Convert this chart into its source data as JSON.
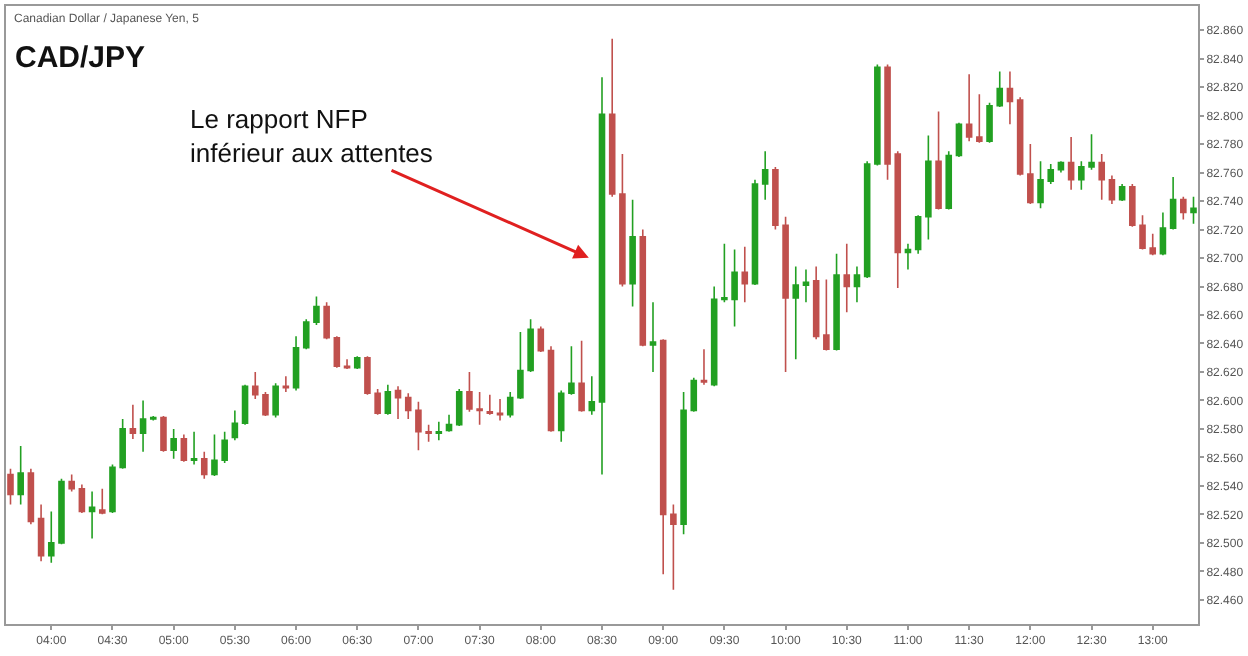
{
  "chart_data": {
    "type": "candlestick",
    "title": "CAD/JPY",
    "subtitle": "Canadian Dollar / Japanese Yen, 5",
    "annotations": [
      "Le rapport NFP\ninférieur aux attentes"
    ],
    "colors": [
      "#c0504d",
      "#22a022",
      "#c0504d",
      "#c0504d",
      "#22a022",
      "#22a022",
      "#c0504d",
      "#c0504d",
      "#22a022",
      "#c0504d",
      "#22a022",
      "#22a022",
      "#c0504d",
      "#22a022",
      "#22a022",
      "#c0504d",
      "#22a022",
      "#c0504d",
      "#22a022",
      "#c0504d",
      "#22a022",
      "#22a022",
      "#22a022",
      "#22a022",
      "#c0504d",
      "#c0504d",
      "#22a022",
      "#c0504d",
      "#22a022",
      "#22a022",
      "#22a022",
      "#c0504d",
      "#c0504d",
      "#c0504d",
      "#22a022",
      "#c0504d",
      "#c0504d",
      "#22a022",
      "#c0504d",
      "#c0504d",
      "#c0504d",
      "#c0504d",
      "#22a022",
      "#22a022",
      "#22a022",
      "#c0504d",
      "#c0504d",
      "#c0504d",
      "#c0504d",
      "#22a022",
      "#22a022",
      "#22a022",
      "#c0504d",
      "#c0504d",
      "#22a022",
      "#22a022",
      "#c0504d",
      "#22a022",
      "#22a022",
      "#c0504d",
      "#c0504d",
      "#22a022",
      "#c0504d",
      "#22a022",
      "#c0504d",
      "#c0504d",
      "#22a022",
      "#22a022",
      "#c0504d",
      "#22a022",
      "#22a022",
      "#22a022",
      "#c0504d",
      "#22a022",
      "#22a022",
      "#c0504d",
      "#c0504d",
      "#22a022",
      "#22a022",
      "#c0504d",
      "#c0504d",
      "#22a022",
      "#c0504d",
      "#22a022",
      "#22a022",
      "#22a022",
      "#c0504d",
      "#c0504d",
      "#22a022",
      "#22a022",
      "#22a022",
      "#c0504d",
      "#22a022",
      "#22a022",
      "#c0504d",
      "#c0504d",
      "#22a022",
      "#22a022",
      "#c0504d",
      "#c0504d",
      "#c0504d",
      "#22a022",
      "#22a022",
      "#22a022",
      "#c0504d",
      "#22a022",
      "#22a022",
      "#c0504d",
      "#c0504d",
      "#22a022",
      "#c0504d",
      "#c0504d",
      "#c0504d",
      "#22a022",
      "#22a022",
      "#c0504d",
      "#22a022"
    ],
    "x": [
      3.6667,
      3.75,
      3.8333,
      3.9167,
      4,
      4.0833,
      4.1667,
      4.25,
      4.3333,
      4.4167,
      4.5,
      4.5833,
      4.6667,
      4.75,
      4.8333,
      4.9167,
      5,
      5.0833,
      5.1667,
      5.25,
      5.3333,
      5.4167,
      5.5,
      5.5833,
      5.6667,
      5.75,
      5.8333,
      5.9167,
      6,
      6.0833,
      6.1667,
      6.25,
      6.3333,
      6.4167,
      6.5,
      6.5833,
      6.6667,
      6.75,
      6.8333,
      6.9167,
      7,
      7.0833,
      7.1667,
      7.25,
      7.3333,
      7.4167,
      7.5,
      7.5833,
      7.6667,
      7.75,
      7.8333,
      7.9167,
      8,
      8.0833,
      8.1667,
      8.25,
      8.3333,
      8.4167,
      8.5,
      8.5833,
      8.6667,
      8.75,
      8.8333,
      8.9167,
      9,
      9.0833,
      9.1667,
      9.25,
      9.3333,
      9.4167,
      9.5,
      9.5833,
      9.6667,
      9.75,
      9.8333,
      9.9167,
      10,
      10.0833,
      10.1667,
      10.25,
      10.3333,
      10.4167,
      10.5,
      10.5833,
      10.6667,
      10.75,
      10.8333,
      10.9167,
      11,
      11.0833,
      11.1667,
      11.25,
      11.3333,
      11.4167,
      11.5,
      11.5833,
      11.6667,
      11.75,
      11.8333,
      11.9167,
      12,
      12.0833,
      12.1667,
      12.25,
      12.3333,
      12.4167,
      12.5,
      12.5833,
      12.6667,
      12.75,
      12.8333,
      12.9167,
      13,
      13.0833,
      13.1667,
      13.25,
      13.3333
    ],
    "ohlc": [
      [
        82.548,
        82.552,
        82.527,
        82.534
      ],
      [
        82.534,
        82.568,
        82.527,
        82.549
      ],
      [
        82.549,
        82.552,
        82.513,
        82.515
      ],
      [
        82.517,
        82.527,
        82.487,
        82.491
      ],
      [
        82.491,
        82.522,
        82.486,
        82.5
      ],
      [
        82.5,
        82.545,
        82.499,
        82.543
      ],
      [
        82.543,
        82.548,
        82.536,
        82.538
      ],
      [
        82.538,
        82.541,
        82.521,
        82.522
      ],
      [
        82.522,
        82.536,
        82.503,
        82.525
      ],
      [
        82.523,
        82.538,
        82.52,
        82.521
      ],
      [
        82.522,
        82.555,
        82.521,
        82.553
      ],
      [
        82.553,
        82.587,
        82.552,
        82.58
      ],
      [
        82.58,
        82.597,
        82.573,
        82.577
      ],
      [
        82.577,
        82.6,
        82.564,
        82.587
      ],
      [
        82.587,
        82.589,
        82.586,
        82.588
      ],
      [
        82.588,
        82.589,
        82.564,
        82.565
      ],
      [
        82.565,
        82.58,
        82.559,
        82.573
      ],
      [
        82.573,
        82.576,
        82.557,
        82.558
      ],
      [
        82.558,
        82.578,
        82.555,
        82.559
      ],
      [
        82.559,
        82.564,
        82.545,
        82.548
      ],
      [
        82.548,
        82.576,
        82.547,
        82.558
      ],
      [
        82.558,
        82.578,
        82.556,
        82.572
      ],
      [
        82.574,
        82.593,
        82.572,
        82.584
      ],
      [
        82.584,
        82.611,
        82.583,
        82.61
      ],
      [
        82.61,
        82.62,
        82.601,
        82.604
      ],
      [
        82.604,
        82.606,
        82.589,
        82.59
      ],
      [
        82.59,
        82.612,
        82.588,
        82.61
      ],
      [
        82.61,
        82.617,
        82.606,
        82.609
      ],
      [
        82.609,
        82.645,
        82.607,
        82.637
      ],
      [
        82.637,
        82.657,
        82.636,
        82.655
      ],
      [
        82.655,
        82.673,
        82.653,
        82.666
      ],
      [
        82.666,
        82.669,
        82.643,
        82.644
      ],
      [
        82.644,
        82.645,
        82.623,
        82.624
      ],
      [
        82.624,
        82.629,
        82.622,
        82.623
      ],
      [
        82.623,
        82.631,
        82.622,
        82.63
      ],
      [
        82.63,
        82.631,
        82.604,
        82.605
      ],
      [
        82.605,
        82.608,
        82.59,
        82.591
      ],
      [
        82.591,
        82.611,
        82.59,
        82.606
      ],
      [
        82.607,
        82.61,
        82.587,
        82.602
      ],
      [
        82.602,
        82.605,
        82.587,
        82.593
      ],
      [
        82.593,
        82.599,
        82.565,
        82.578
      ],
      [
        82.578,
        82.583,
        82.571,
        82.577
      ],
      [
        82.577,
        82.585,
        82.572,
        82.578
      ],
      [
        82.579,
        82.59,
        82.578,
        82.583
      ],
      [
        82.583,
        82.608,
        82.582,
        82.606
      ],
      [
        82.606,
        82.62,
        82.592,
        82.594
      ],
      [
        82.594,
        82.606,
        82.583,
        82.593
      ],
      [
        82.592,
        82.604,
        82.59,
        82.591
      ],
      [
        82.591,
        82.601,
        82.586,
        82.59
      ],
      [
        82.59,
        82.606,
        82.588,
        82.602
      ],
      [
        82.602,
        82.648,
        82.601,
        82.621
      ],
      [
        82.621,
        82.657,
        82.62,
        82.65
      ],
      [
        82.65,
        82.652,
        82.634,
        82.635
      ],
      [
        82.635,
        82.638,
        82.578,
        82.579
      ],
      [
        82.579,
        82.607,
        82.571,
        82.605
      ],
      [
        82.605,
        82.638,
        82.604,
        82.612
      ],
      [
        82.612,
        82.642,
        82.592,
        82.593
      ],
      [
        82.593,
        82.617,
        82.59,
        82.599
      ],
      [
        82.599,
        82.827,
        82.548,
        82.801
      ],
      [
        82.801,
        82.854,
        82.743,
        82.745
      ],
      [
        82.745,
        82.773,
        82.68,
        82.682
      ],
      [
        82.682,
        82.741,
        82.666,
        82.715
      ],
      [
        82.715,
        82.72,
        82.638,
        82.639
      ],
      [
        82.639,
        82.669,
        82.62,
        82.641
      ],
      [
        82.642,
        82.643,
        82.478,
        82.52
      ],
      [
        82.52,
        82.527,
        82.467,
        82.513
      ],
      [
        82.513,
        82.606,
        82.506,
        82.593
      ],
      [
        82.593,
        82.616,
        82.592,
        82.614
      ],
      [
        82.614,
        82.636,
        82.611,
        82.613
      ],
      [
        82.611,
        82.68,
        82.61,
        82.671
      ],
      [
        82.671,
        82.71,
        82.669,
        82.672
      ],
      [
        82.671,
        82.706,
        82.652,
        82.69
      ],
      [
        82.69,
        82.708,
        82.669,
        82.682
      ],
      [
        82.682,
        82.755,
        82.681,
        82.752
      ],
      [
        82.752,
        82.775,
        82.741,
        82.762
      ],
      [
        82.762,
        82.764,
        82.72,
        82.723
      ],
      [
        82.723,
        82.729,
        82.62,
        82.672
      ],
      [
        82.672,
        82.694,
        82.629,
        82.681
      ],
      [
        82.681,
        82.692,
        82.669,
        82.683
      ],
      [
        82.684,
        82.694,
        82.643,
        82.645
      ],
      [
        82.646,
        82.685,
        82.635,
        82.636
      ],
      [
        82.636,
        82.703,
        82.635,
        82.688
      ],
      [
        82.688,
        82.71,
        82.662,
        82.68
      ],
      [
        82.68,
        82.694,
        82.669,
        82.688
      ],
      [
        82.687,
        82.768,
        82.686,
        82.766
      ],
      [
        82.766,
        82.836,
        82.765,
        82.834
      ],
      [
        82.834,
        82.836,
        82.755,
        82.766
      ],
      [
        82.773,
        82.775,
        82.679,
        82.704
      ],
      [
        82.704,
        82.71,
        82.692,
        82.706
      ],
      [
        82.706,
        82.73,
        82.703,
        82.729
      ],
      [
        82.729,
        82.786,
        82.713,
        82.768
      ],
      [
        82.768,
        82.803,
        82.734,
        82.735
      ],
      [
        82.735,
        82.775,
        82.734,
        82.772
      ],
      [
        82.772,
        82.795,
        82.771,
        82.794
      ],
      [
        82.794,
        82.829,
        82.782,
        82.785
      ],
      [
        82.785,
        82.815,
        82.781,
        82.782
      ],
      [
        82.782,
        82.809,
        82.781,
        82.807
      ],
      [
        82.807,
        82.831,
        82.806,
        82.819
      ],
      [
        82.819,
        82.831,
        82.794,
        82.81
      ],
      [
        82.811,
        82.813,
        82.758,
        82.759
      ],
      [
        82.759,
        82.78,
        82.738,
        82.739
      ],
      [
        82.739,
        82.768,
        82.735,
        82.755
      ],
      [
        82.754,
        82.766,
        82.752,
        82.762
      ],
      [
        82.762,
        82.768,
        82.76,
        82.767
      ],
      [
        82.767,
        82.785,
        82.748,
        82.755
      ],
      [
        82.755,
        82.768,
        82.748,
        82.764
      ],
      [
        82.764,
        82.787,
        82.762,
        82.767
      ],
      [
        82.767,
        82.773,
        82.741,
        82.755
      ],
      [
        82.755,
        82.758,
        82.738,
        82.741
      ],
      [
        82.741,
        82.752,
        82.74,
        82.75
      ],
      [
        82.75,
        82.752,
        82.722,
        82.723
      ],
      [
        82.723,
        82.73,
        82.706,
        82.707
      ],
      [
        82.707,
        82.717,
        82.702,
        82.703
      ],
      [
        82.703,
        82.732,
        82.702,
        82.721
      ],
      [
        82.721,
        82.757,
        82.72,
        82.741
      ],
      [
        82.741,
        82.743,
        82.727,
        82.732
      ],
      [
        82.732,
        82.743,
        82.724,
        82.735
      ]
    ],
    "xlim": [
      3.63,
      13.37
    ],
    "xticks": [
      {
        "value": 4,
        "label": "04:00"
      },
      {
        "value": 4.5,
        "label": "04:30"
      },
      {
        "value": 5,
        "label": "05:00"
      },
      {
        "value": 5.5,
        "label": "05:30"
      },
      {
        "value": 6,
        "label": "06:00"
      },
      {
        "value": 6.5,
        "label": "06:30"
      },
      {
        "value": 7,
        "label": "07:00"
      },
      {
        "value": 7.5,
        "label": "07:30"
      },
      {
        "value": 8,
        "label": "08:00"
      },
      {
        "value": 8.5,
        "label": "08:30"
      },
      {
        "value": 9,
        "label": "09:00"
      },
      {
        "value": 9.5,
        "label": "09:30"
      },
      {
        "value": 10,
        "label": "10:00"
      },
      {
        "value": 10.5,
        "label": "10:30"
      },
      {
        "value": 11,
        "label": "11:00"
      },
      {
        "value": 11.5,
        "label": "11:30"
      },
      {
        "value": 12,
        "label": "12:00"
      },
      {
        "value": 12.5,
        "label": "12:30"
      },
      {
        "value": 13,
        "label": "13:00"
      }
    ],
    "ylim": [
      82.443,
      82.877
    ],
    "yticks": [
      {
        "value": 82.46,
        "label": "82.460"
      },
      {
        "value": 82.48,
        "label": "82.480"
      },
      {
        "value": 82.5,
        "label": "82.500"
      },
      {
        "value": 82.52,
        "label": "82.520"
      },
      {
        "value": 82.54,
        "label": "82.540"
      },
      {
        "value": 82.56,
        "label": "82.560"
      },
      {
        "value": 82.58,
        "label": "82.580"
      },
      {
        "value": 82.6,
        "label": "82.600"
      },
      {
        "value": 82.62,
        "label": "82.620"
      },
      {
        "value": 82.64,
        "label": "82.640"
      },
      {
        "value": 82.66,
        "label": "82.660"
      },
      {
        "value": 82.68,
        "label": "82.680"
      },
      {
        "value": 82.7,
        "label": "82.700"
      },
      {
        "value": 82.72,
        "label": "82.720"
      },
      {
        "value": 82.74,
        "label": "82.740"
      },
      {
        "value": 82.76,
        "label": "82.760"
      },
      {
        "value": 82.78,
        "label": "82.780"
      },
      {
        "value": 82.8,
        "label": "82.800"
      },
      {
        "value": 82.82,
        "label": "82.820"
      },
      {
        "value": 82.84,
        "label": "82.840"
      },
      {
        "value": 82.86,
        "label": "82.860"
      }
    ],
    "legend": false
  }
}
